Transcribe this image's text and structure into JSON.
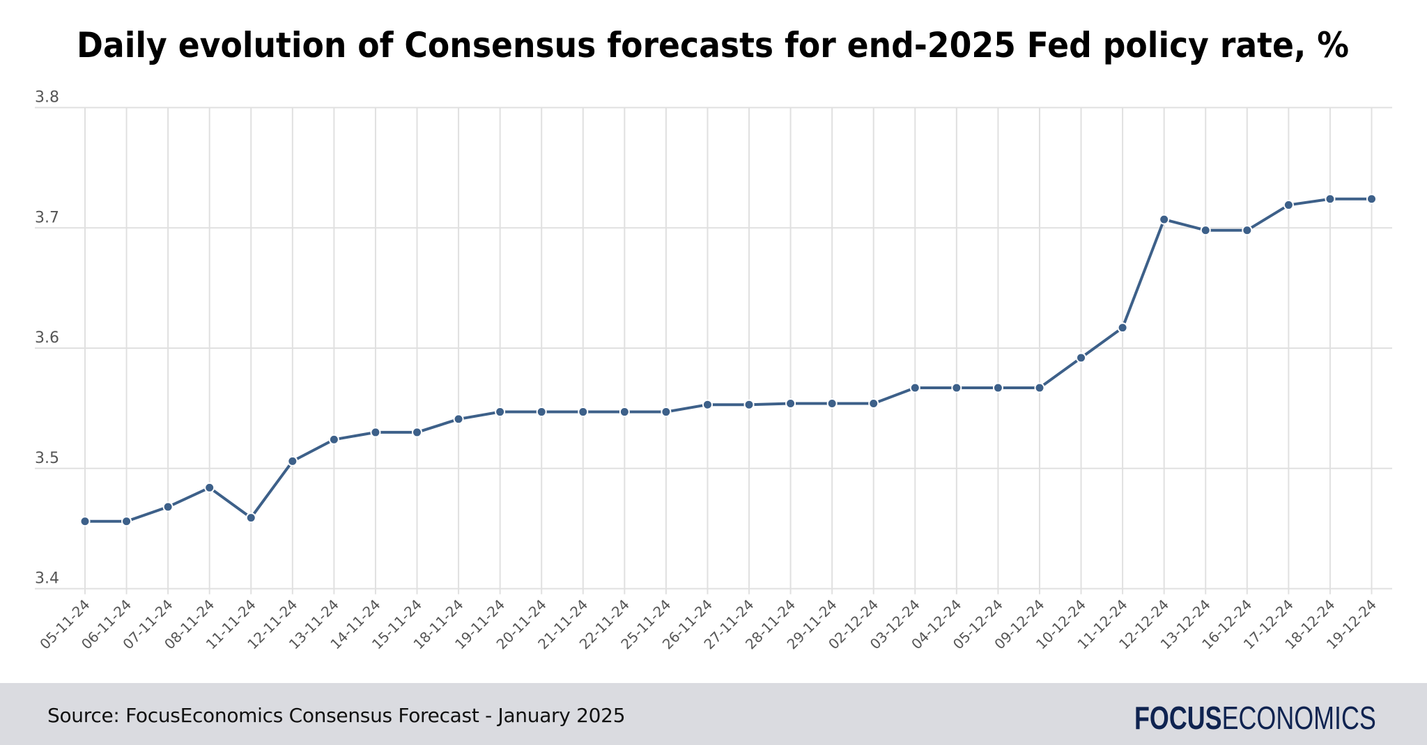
{
  "chart_data": {
    "type": "line",
    "title": "Daily evolution of Consensus forecasts for end-2025 Fed policy rate, %",
    "xlabel": "",
    "ylabel": "",
    "ylim": [
      3.4,
      3.8
    ],
    "yticks": [
      "3.4",
      "3.5",
      "3.6",
      "3.7",
      "3.8"
    ],
    "grid": true,
    "line_color": "#3d6089",
    "categories": [
      "05-11-24",
      "06-11-24",
      "07-11-24",
      "08-11-24",
      "11-11-24",
      "12-11-24",
      "13-11-24",
      "14-11-24",
      "15-11-24",
      "18-11-24",
      "19-11-24",
      "20-11-24",
      "21-11-24",
      "22-11-24",
      "25-11-24",
      "26-11-24",
      "27-11-24",
      "28-11-24",
      "29-11-24",
      "02-12-24",
      "03-12-24",
      "04-12-24",
      "05-12-24",
      "09-12-24",
      "10-12-24",
      "11-12-24",
      "12-12-24",
      "13-12-24",
      "16-12-24",
      "17-12-24",
      "18-12-24",
      "19-12-24"
    ],
    "values": [
      3.456,
      3.456,
      3.468,
      3.484,
      3.459,
      3.506,
      3.524,
      3.53,
      3.53,
      3.541,
      3.547,
      3.547,
      3.547,
      3.547,
      3.547,
      3.553,
      3.553,
      3.554,
      3.554,
      3.554,
      3.567,
      3.567,
      3.567,
      3.567,
      3.592,
      3.617,
      3.707,
      3.698,
      3.698,
      3.719,
      3.724,
      3.724
    ]
  },
  "footer": {
    "source": "Source: FocusEconomics Consensus Forecast - January 2025",
    "logo_bold": "FOCUS",
    "logo_light": "ECONOMICS",
    "background": "#dadbe0"
  }
}
